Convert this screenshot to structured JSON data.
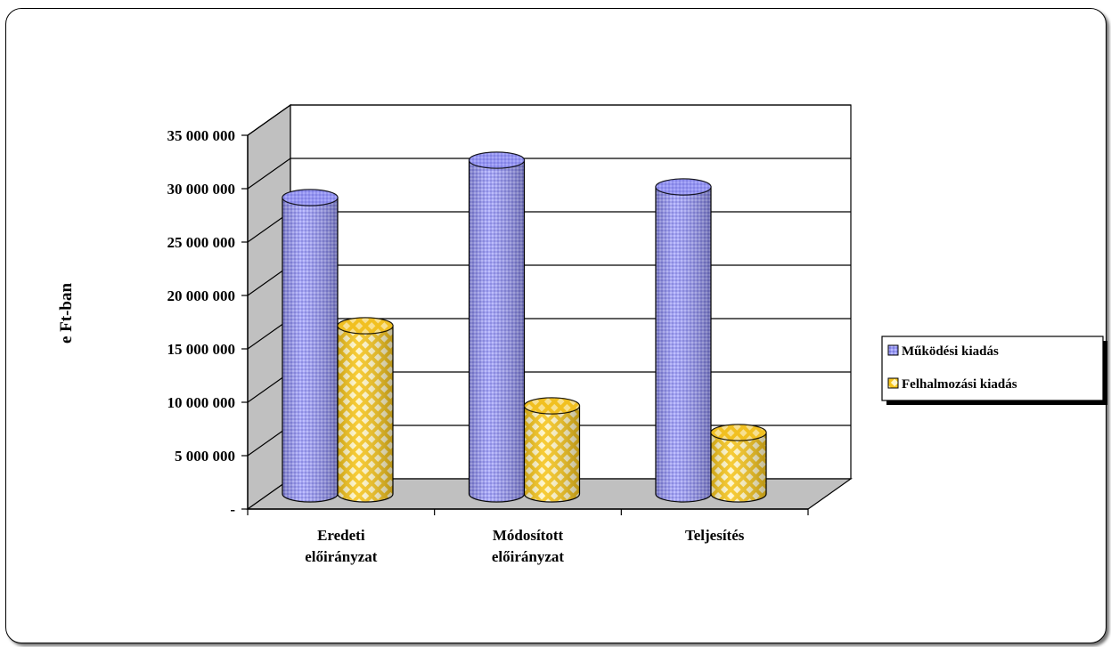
{
  "chart_data": {
    "type": "bar",
    "style": "3d-cylinder",
    "title": "",
    "ylabel": "e Ft-ban",
    "xlabel": "",
    "ylim": [
      0,
      35000000
    ],
    "y_ticks": [
      "-",
      "5 000 000",
      "10 000 000",
      "15 000 000",
      "20 000 000",
      "25 000 000",
      "30 000 000",
      "35 000 000"
    ],
    "categories": [
      {
        "line1": "Eredeti",
        "line2": "előirányzat"
      },
      {
        "line1": "Módosított",
        "line2": "előirányzat"
      },
      {
        "line1": "Teljesítés",
        "line2": ""
      }
    ],
    "series": [
      {
        "name": "Működési kiadás",
        "color": "#9999ff",
        "values": [
          28000000,
          31500000,
          29000000
        ]
      },
      {
        "name": "Felhalmozási kiadás",
        "color": "#ffcc33",
        "values": [
          16000000,
          8500000,
          6000000
        ]
      }
    ],
    "grid": true,
    "legend_position": "right",
    "wall_color": "#c0c0c0",
    "floor_color": "#c0c0c0"
  }
}
